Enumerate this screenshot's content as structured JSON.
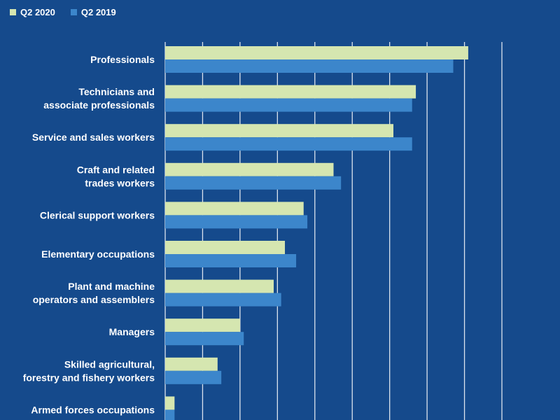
{
  "chart_data": {
    "type": "bar",
    "orientation": "horizontal",
    "title": "",
    "xlabel": "",
    "ylabel": "",
    "grid": true,
    "legend_position": "top-left",
    "categories": [
      "Professionals",
      "Technicians and associate professionals",
      "Service and sales workers",
      "Craft and related trades workers",
      "Clerical support workers",
      "Elementary occupations",
      "Plant and machine operators and assemblers",
      "Managers",
      "Skilled agricultural, forestry and fishery workers",
      "Armed forces occupations"
    ],
    "category_lines": [
      [
        "Professionals"
      ],
      [
        "Technicians and",
        "associate professionals"
      ],
      [
        "Service and sales workers"
      ],
      [
        "Craft and related",
        "trades workers"
      ],
      [
        "Clerical support workers"
      ],
      [
        "Elementary occupations"
      ],
      [
        "Plant and machine",
        "operators and assemblers"
      ],
      [
        "Managers"
      ],
      [
        "Skilled agricultural,",
        "forestry and fishery workers"
      ],
      [
        "Armed forces occupations"
      ]
    ],
    "series": [
      {
        "name": "Q2 2020",
        "color": "#d5e6b0",
        "values": [
          8.1,
          6.7,
          6.1,
          4.5,
          3.7,
          3.2,
          2.9,
          2.0,
          1.4,
          0.25
        ]
      },
      {
        "name": "Q2 2019",
        "color": "#3c86cb",
        "values": [
          7.7,
          6.6,
          6.6,
          4.7,
          3.8,
          3.5,
          3.1,
          2.1,
          1.5,
          0.25
        ]
      }
    ],
    "xlim": [
      0,
      9
    ],
    "grid_step": 1
  }
}
